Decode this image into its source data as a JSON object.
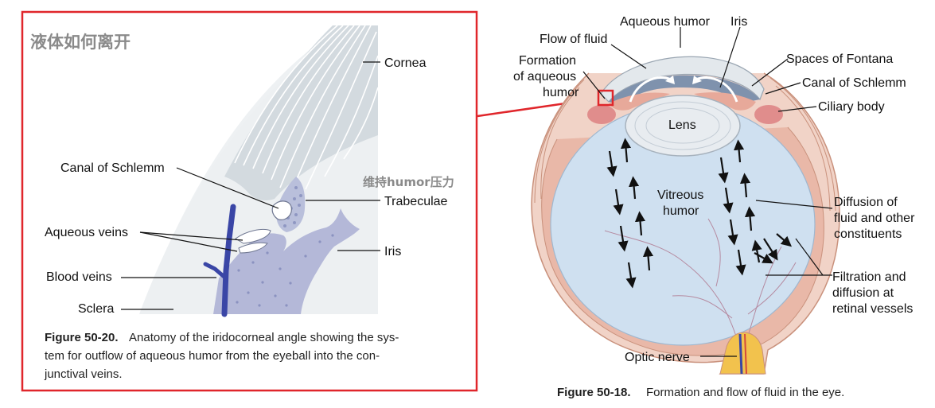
{
  "left_panel": {
    "note_cn": "液体如何离开",
    "note_humor": "维持humor压力",
    "labels": {
      "cornea": "Cornea",
      "canal": "Canal of Schlemm",
      "trabeculae": "Trabeculae",
      "aqueous_veins": "Aqueous veins",
      "iris": "Iris",
      "blood_veins": "Blood veins",
      "sclera": "Sclera"
    },
    "caption": {
      "figure": "Figure 50-20.",
      "line1": "Anatomy of the iridocorneal angle showing the sys-",
      "line2": "tem for outflow of aqueous humor from the eyeball into the con-",
      "line3": "junctival veins."
    },
    "frame_color": "#e0262b"
  },
  "right_panel": {
    "labels": {
      "aqueous_humor": "Aqueous humor",
      "iris": "Iris",
      "flow_of_fluid": "Flow of fluid",
      "formation_1": "Formation",
      "formation_2": "of aqueous",
      "formation_3": "humor",
      "spaces_of_fontana": "Spaces of Fontana",
      "canal": "Canal of Schlemm",
      "ciliary": "Ciliary body",
      "lens": "Lens",
      "vitreous_1": "Vitreous",
      "vitreous_2": "humor",
      "diffusion_1": "Diffusion of",
      "diffusion_2": "fluid and other",
      "diffusion_3": "constituents",
      "filtration_1": "Filtration and",
      "filtration_2": "diffusion at",
      "filtration_3": "retinal vessels",
      "optic_nerve": "Optic nerve"
    },
    "caption": {
      "figure": "Figure 50-18.",
      "text": "Formation and flow of fluid in the eye."
    }
  },
  "colors": {
    "highlight_red": "#e0262b",
    "cornea_gray": "#d6dde2",
    "iris_lilac": "#b4b8d8",
    "vein_blue": "#3a46a6",
    "vitreous_blue": "#cfe0f0",
    "sclera_pink": "#e9b8a8"
  }
}
